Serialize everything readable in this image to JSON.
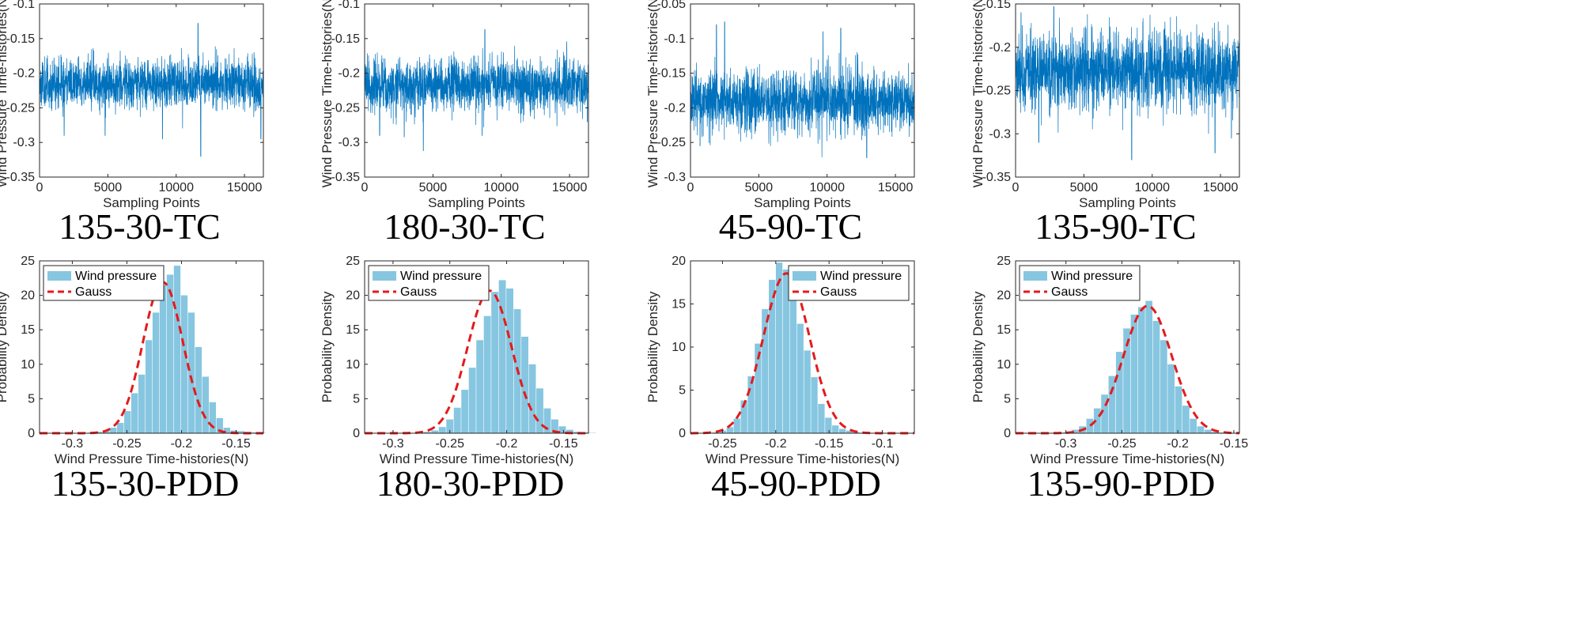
{
  "figure": {
    "colors": {
      "ts_line": "#0072BD",
      "hist_bar": "#87C6E0",
      "gauss": "#E41A1C",
      "axis": "#262626"
    }
  },
  "chart_data": [
    {
      "type": "line",
      "id": "ts1",
      "caption": "135-30-TC",
      "xlabel": "Sampling Points",
      "ylabel": "Wind Pressure Time-histories(N)",
      "xlim": [
        0,
        16384
      ],
      "ylim": [
        -0.35,
        -0.1
      ],
      "xticks": [
        0,
        5000,
        10000,
        15000
      ],
      "xtick_labels": [
        "0",
        "5000",
        "10000",
        "15000"
      ],
      "yticks": [
        -0.35,
        -0.3,
        -0.25,
        -0.2,
        -0.15,
        -0.1
      ],
      "ytick_labels": [
        "-0.35",
        "-0.3",
        "-0.25",
        "-0.2",
        "-0.15",
        "-0.1"
      ],
      "series": {
        "name": "Wind pressure",
        "n_points": 16384,
        "mean": -0.215,
        "std": 0.017,
        "seed": 11,
        "extremes": [
          [
            11600,
            -0.128
          ],
          [
            11800,
            -0.32
          ],
          [
            9000,
            -0.295
          ],
          [
            1800,
            -0.29
          ],
          [
            4800,
            -0.29
          ],
          [
            16200,
            -0.295
          ]
        ]
      }
    },
    {
      "type": "line",
      "id": "ts2",
      "caption": "180-30-TC",
      "xlabel": "Sampling Points",
      "ylabel": "Wind Pressure Time-histories(N)",
      "xlim": [
        0,
        16384
      ],
      "ylim": [
        -0.35,
        -0.1
      ],
      "xticks": [
        0,
        5000,
        10000,
        15000
      ],
      "xtick_labels": [
        "0",
        "5000",
        "10000",
        "15000"
      ],
      "yticks": [
        -0.35,
        -0.3,
        -0.25,
        -0.2,
        -0.15,
        -0.1
      ],
      "ytick_labels": [
        "-0.35",
        "-0.3",
        "-0.25",
        "-0.2",
        "-0.15",
        "-0.1"
      ],
      "series": {
        "name": "Wind pressure",
        "n_points": 16384,
        "mean": -0.218,
        "std": 0.019,
        "seed": 23,
        "extremes": [
          [
            8800,
            -0.137
          ],
          [
            4300,
            -0.312
          ],
          [
            2900,
            -0.292
          ],
          [
            8600,
            -0.29
          ],
          [
            1100,
            -0.29
          ],
          [
            16300,
            -0.27
          ]
        ]
      }
    },
    {
      "type": "line",
      "id": "ts3",
      "caption": "45-90-TC",
      "xlabel": "Sampling Points",
      "ylabel": "Wind Pressure Time-histories(N)",
      "xlim": [
        0,
        16384
      ],
      "ylim": [
        -0.3,
        -0.05
      ],
      "xticks": [
        0,
        5000,
        10000,
        15000
      ],
      "xtick_labels": [
        "0",
        "5000",
        "10000",
        "15000"
      ],
      "yticks": [
        -0.3,
        -0.25,
        -0.2,
        -0.15,
        -0.1,
        -0.05
      ],
      "ytick_labels": [
        "-0.3",
        "-0.25",
        "-0.2",
        "-0.15",
        "-0.1",
        "-0.05"
      ],
      "series": {
        "name": "Wind pressure",
        "n_points": 16384,
        "mean": -0.19,
        "std": 0.021,
        "seed": 37,
        "extremes": [
          [
            2500,
            -0.076
          ],
          [
            1900,
            -0.08
          ],
          [
            12900,
            -0.272
          ],
          [
            11000,
            -0.085
          ],
          [
            9700,
            -0.09
          ],
          [
            700,
            -0.255
          ]
        ]
      }
    },
    {
      "type": "line",
      "id": "ts4",
      "caption": "135-90-TC",
      "xlabel": "Sampling Points",
      "ylabel": "Wind Pressure Time-histories(N)",
      "xlim": [
        0,
        16384
      ],
      "ylim": [
        -0.35,
        -0.15
      ],
      "xticks": [
        0,
        5000,
        10000,
        15000
      ],
      "xtick_labels": [
        "0",
        "5000",
        "10000",
        "15000"
      ],
      "yticks": [
        -0.35,
        -0.3,
        -0.25,
        -0.2,
        -0.15
      ],
      "ytick_labels": [
        "-0.35",
        "-0.3",
        "-0.25",
        "-0.2",
        "-0.15"
      ],
      "series": {
        "name": "Wind pressure",
        "n_points": 16384,
        "mean": -0.228,
        "std": 0.022,
        "seed": 41,
        "extremes": [
          [
            2800,
            -0.153
          ],
          [
            8500,
            -0.33
          ],
          [
            14600,
            -0.322
          ],
          [
            1700,
            -0.31
          ],
          [
            15800,
            -0.305
          ],
          [
            400,
            -0.16
          ]
        ]
      }
    },
    {
      "type": "bar",
      "id": "pdd1",
      "caption": "135-30-PDD",
      "xlabel": "Wind Pressure Time-histories(N)",
      "ylabel": "Probability Density",
      "xlim": [
        -0.33,
        -0.125
      ],
      "ylim": [
        0,
        25
      ],
      "xticks": [
        -0.3,
        -0.25,
        -0.2,
        -0.15
      ],
      "xtick_labels": [
        "-0.3",
        "-0.25",
        "-0.2",
        "-0.15"
      ],
      "yticks": [
        0,
        5,
        10,
        15,
        20,
        25
      ],
      "ytick_labels": [
        "0",
        "5",
        "10",
        "15",
        "20",
        "25"
      ],
      "bins": {
        "start": -0.3175,
        "width": 0.0065,
        "values": [
          0,
          0,
          0,
          0,
          0,
          0.1,
          0.2,
          0.4,
          0.8,
          1.5,
          3.2,
          5.8,
          8.5,
          13.5,
          17.5,
          21.5,
          23.0,
          24.3,
          20.0,
          17.5,
          12.5,
          8.2,
          4.5,
          2.2,
          0.8,
          0.4,
          0.3,
          0.2,
          0.1,
          0.05
        ]
      },
      "gauss": {
        "mean": -0.217,
        "std": 0.0182
      },
      "legend": {
        "position": "top-left",
        "entries": [
          "Wind pressure",
          "Gauss"
        ]
      }
    },
    {
      "type": "bar",
      "id": "pdd2",
      "caption": "180-30-PDD",
      "xlabel": "Wind Pressure Time-histories(N)",
      "ylabel": "Probability Density",
      "xlim": [
        -0.325,
        -0.128
      ],
      "ylim": [
        0,
        25
      ],
      "xticks": [
        -0.3,
        -0.25,
        -0.2,
        -0.15
      ],
      "xtick_labels": [
        "-0.3",
        "-0.25",
        "-0.2",
        "-0.15"
      ],
      "yticks": [
        0,
        5,
        10,
        15,
        20,
        25
      ],
      "ytick_labels": [
        "0",
        "5",
        "10",
        "15",
        "20",
        "25"
      ],
      "bins": {
        "start": -0.3125,
        "width": 0.0066,
        "values": [
          0,
          0,
          0,
          0,
          0.05,
          0.1,
          0.2,
          0.4,
          0.9,
          2.0,
          3.7,
          6.3,
          9.5,
          13.5,
          17.0,
          20.5,
          22.2,
          21.0,
          18.0,
          14.0,
          10.0,
          6.5,
          3.6,
          2.0,
          1.0,
          0.5,
          0.2,
          0.1,
          0.05
        ]
      },
      "gauss": {
        "mean": -0.215,
        "std": 0.0193
      },
      "legend": {
        "position": "top-left",
        "entries": [
          "Wind pressure",
          "Gauss"
        ]
      }
    },
    {
      "type": "bar",
      "id": "pdd3",
      "caption": "45-90-PDD",
      "xlabel": "Wind Pressure Time-histories(N)",
      "ylabel": "Probability Density",
      "xlim": [
        -0.28,
        -0.07
      ],
      "ylim": [
        0,
        20
      ],
      "xticks": [
        -0.25,
        -0.2,
        -0.15,
        -0.1
      ],
      "xtick_labels": [
        "-0.25",
        "-0.2",
        "-0.15",
        "-0.1"
      ],
      "yticks": [
        0,
        5,
        10,
        15,
        20
      ],
      "ytick_labels": [
        "0",
        "5",
        "10",
        "15",
        "20"
      ],
      "bins": {
        "start": -0.2725,
        "width": 0.0066,
        "values": [
          0,
          0,
          0.1,
          0.3,
          0.7,
          1.7,
          3.8,
          6.6,
          10.4,
          14.4,
          17.8,
          19.8,
          19.0,
          15.6,
          12.7,
          9.6,
          6.5,
          3.4,
          1.8,
          0.9,
          0.5,
          0.3,
          0.1,
          0.05,
          0.05,
          0,
          0,
          0,
          0
        ]
      },
      "gauss": {
        "mean": -0.19,
        "std": 0.0215
      },
      "legend": {
        "position": "top-right",
        "entries": [
          "Wind pressure",
          "Gauss"
        ]
      }
    },
    {
      "type": "bar",
      "id": "pdd4",
      "caption": "135-90-PDD",
      "xlabel": "Wind Pressure Time-histories(N)",
      "ylabel": "Probability Density",
      "xlim": [
        -0.345,
        -0.145
      ],
      "ylim": [
        0,
        25
      ],
      "xticks": [
        -0.3,
        -0.25,
        -0.2,
        -0.15
      ],
      "xtick_labels": [
        "-0.3",
        "-0.25",
        "-0.2",
        "-0.15"
      ],
      "yticks": [
        0,
        5,
        10,
        15,
        20,
        25
      ],
      "ytick_labels": [
        "0",
        "5",
        "10",
        "15",
        "20",
        "25"
      ],
      "bins": {
        "start": -0.3345,
        "width": 0.0066,
        "values": [
          0,
          0,
          0,
          0.05,
          0.1,
          0.2,
          0.5,
          1.0,
          2.1,
          3.6,
          5.6,
          8.3,
          11.8,
          15.2,
          17.2,
          18.3,
          19.2,
          16.3,
          13.5,
          10.0,
          6.8,
          4.0,
          2.1,
          1.0,
          0.5,
          0.2,
          0.1,
          0.05,
          0,
          0
        ]
      },
      "gauss": {
        "mean": -0.227,
        "std": 0.0216
      },
      "legend": {
        "position": "top-left",
        "entries": [
          "Wind pressure",
          "Gauss"
        ]
      }
    }
  ]
}
